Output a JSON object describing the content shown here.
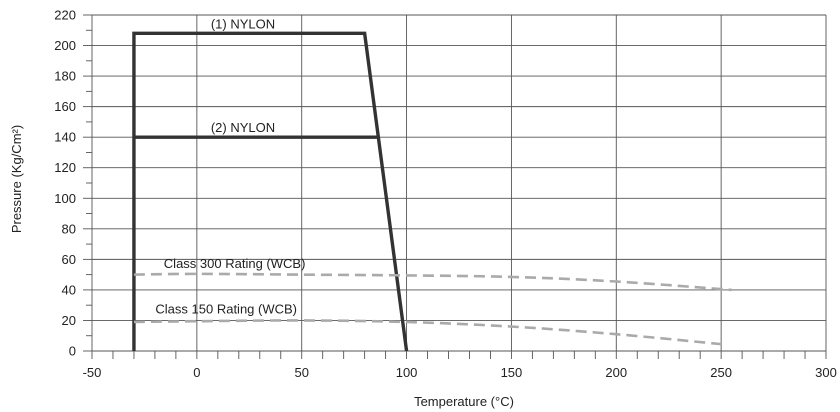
{
  "chart_data": {
    "type": "line",
    "xlabel": "Temperature (°C)",
    "ylabel": "Pressure (Kg/Cm²)",
    "xlim": [
      -50,
      300
    ],
    "ylim": [
      0,
      220
    ],
    "x_ticks": [
      -50,
      0,
      50,
      100,
      150,
      200,
      250,
      300
    ],
    "y_ticks": [
      0,
      20,
      40,
      60,
      80,
      100,
      120,
      140,
      160,
      180,
      200,
      220
    ],
    "x_minor_step": 10,
    "y_minor_step": 10,
    "grid": true,
    "series": [
      {
        "name": "(1) NYLON",
        "color": "#333333",
        "style": "solid",
        "points": [
          [
            -30,
            0
          ],
          [
            -30,
            208
          ],
          [
            80,
            208
          ],
          [
            100,
            0
          ]
        ]
      },
      {
        "name": "(2) NYLON",
        "color": "#333333",
        "style": "solid",
        "points": [
          [
            -30,
            140
          ],
          [
            87,
            140
          ]
        ]
      },
      {
        "name": "Class 300 Rating (WCB)",
        "color": "#aaaaaa",
        "style": "dashed",
        "points": [
          [
            -30,
            50
          ],
          [
            0,
            50.5
          ],
          [
            50,
            50
          ],
          [
            100,
            49.5
          ],
          [
            150,
            48.5
          ],
          [
            200,
            45.5
          ],
          [
            255,
            40
          ]
        ]
      },
      {
        "name": "Class 150 Rating (WCB)",
        "color": "#aaaaaa",
        "style": "dashed",
        "points": [
          [
            -30,
            19
          ],
          [
            0,
            19.5
          ],
          [
            50,
            20
          ],
          [
            100,
            19
          ],
          [
            150,
            16
          ],
          [
            200,
            11
          ],
          [
            250,
            4.5
          ]
        ]
      }
    ]
  }
}
